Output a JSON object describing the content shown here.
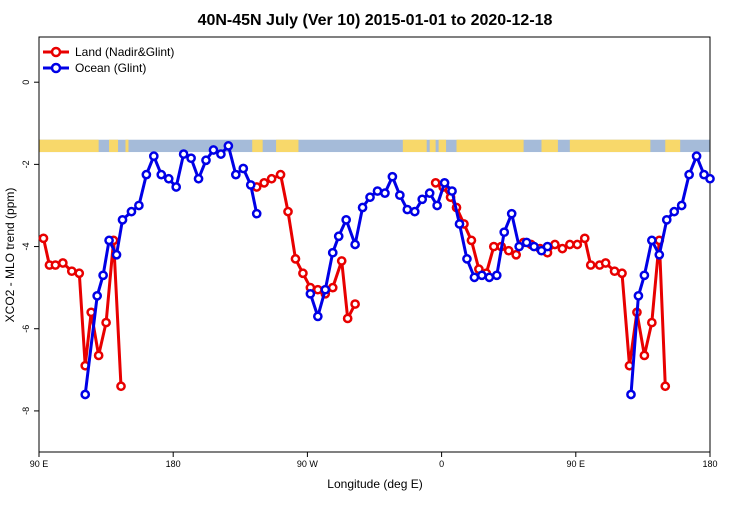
{
  "chart_data": {
    "type": "line",
    "title": "40N-45N July (Ver 10)   2015-01-01 to 2020-12-18",
    "xlabel": "Longitude (deg E)",
    "ylabel": "XCO2 - MLO trend (ppm)",
    "x_ticks": [
      {
        "value": 90,
        "label": "90 E"
      },
      {
        "value": 180,
        "label": "180"
      },
      {
        "value": 270,
        "label": "90 W"
      },
      {
        "value": 360,
        "label": "0"
      },
      {
        "value": 450,
        "label": "90 E"
      },
      {
        "value": 540,
        "label": "180"
      }
    ],
    "y_ticks": [
      {
        "value": 0,
        "label": "0"
      },
      {
        "value": -2,
        "label": "-2"
      },
      {
        "value": -4,
        "label": "-4"
      },
      {
        "value": -6,
        "label": "-6"
      },
      {
        "value": -8,
        "label": "-8"
      }
    ],
    "xlim": [
      90,
      540
    ],
    "ylim": [
      -9,
      1.1
    ],
    "legend_position": "top-left",
    "grid": false,
    "land_mask_band": {
      "y_range": [
        -1.7,
        -1.4
      ],
      "ocean_color": "#a5bbd9",
      "land_color": "#f8d86a",
      "land_segments": [
        [
          90,
          130
        ],
        [
          137,
          143
        ],
        [
          148,
          150
        ],
        [
          233,
          240
        ],
        [
          249,
          264
        ],
        [
          334,
          350
        ],
        [
          352,
          356
        ],
        [
          358,
          363
        ],
        [
          370,
          415
        ],
        [
          427,
          438
        ],
        [
          446,
          500
        ],
        [
          510,
          520
        ]
      ]
    },
    "series": [
      {
        "name": "Land (Nadir&Glint)",
        "color": "#e80000",
        "points": [
          [
            93,
            -3.8
          ],
          [
            97,
            -4.45
          ],
          [
            101,
            -4.45
          ],
          [
            106,
            -4.4
          ],
          [
            112,
            -4.6
          ],
          [
            117,
            -4.65
          ],
          [
            121,
            -6.9
          ],
          [
            125,
            -5.6
          ],
          [
            130,
            -6.65
          ],
          [
            135,
            -5.85
          ],
          [
            140,
            -3.85
          ],
          [
            145,
            -7.4
          ],
          [
            236,
            -2.55
          ],
          [
            241,
            -2.45
          ],
          [
            246,
            -2.35
          ],
          [
            252,
            -2.25
          ],
          [
            257,
            -3.15
          ],
          [
            262,
            -4.3
          ],
          [
            267,
            -4.65
          ],
          [
            272,
            -5.0
          ],
          [
            277,
            -5.05
          ],
          [
            282,
            -5.15
          ],
          [
            287,
            -5.0
          ],
          [
            293,
            -4.35
          ],
          [
            297,
            -5.75
          ],
          [
            302,
            -5.4
          ],
          [
            356,
            -2.45
          ],
          [
            361,
            -2.55
          ],
          [
            366,
            -2.8
          ],
          [
            370,
            -3.05
          ],
          [
            375,
            -3.45
          ],
          [
            380,
            -3.85
          ],
          [
            385,
            -4.55
          ],
          [
            390,
            -4.65
          ],
          [
            395,
            -4.0
          ],
          [
            400,
            -4.0
          ],
          [
            405,
            -4.1
          ],
          [
            410,
            -4.2
          ],
          [
            415,
            -3.9
          ],
          [
            420,
            -3.95
          ],
          [
            426,
            -4.05
          ],
          [
            431,
            -4.15
          ],
          [
            436,
            -3.95
          ],
          [
            441,
            -4.05
          ],
          [
            446,
            -3.95
          ],
          [
            451,
            -3.95
          ],
          [
            456,
            -3.8
          ],
          [
            460,
            -4.45
          ],
          [
            466,
            -4.45
          ],
          [
            470,
            -4.4
          ],
          [
            476,
            -4.6
          ],
          [
            481,
            -4.65
          ],
          [
            486,
            -6.9
          ],
          [
            491,
            -5.6
          ],
          [
            496,
            -6.65
          ],
          [
            501,
            -5.85
          ],
          [
            506,
            -3.85
          ],
          [
            510,
            -7.4
          ]
        ]
      },
      {
        "name": "Ocean (Glint)",
        "color": "#0000e6",
        "points": [
          [
            121,
            -7.6
          ],
          [
            129,
            -5.2
          ],
          [
            133,
            -4.7
          ],
          [
            137,
            -3.85
          ],
          [
            142,
            -4.2
          ],
          [
            146,
            -3.35
          ],
          [
            152,
            -3.15
          ],
          [
            157,
            -3.0
          ],
          [
            162,
            -2.25
          ],
          [
            167,
            -1.8
          ],
          [
            172,
            -2.25
          ],
          [
            177,
            -2.35
          ],
          [
            182,
            -2.55
          ],
          [
            187,
            -1.75
          ],
          [
            192,
            -1.85
          ],
          [
            197,
            -2.35
          ],
          [
            202,
            -1.9
          ],
          [
            207,
            -1.65
          ],
          [
            212,
            -1.75
          ],
          [
            217,
            -1.55
          ],
          [
            222,
            -2.25
          ],
          [
            227,
            -2.1
          ],
          [
            232,
            -2.5
          ],
          [
            236,
            -3.2
          ],
          [
            272,
            -5.15
          ],
          [
            277,
            -5.7
          ],
          [
            282,
            -5.05
          ],
          [
            287,
            -4.15
          ],
          [
            291,
            -3.75
          ],
          [
            296,
            -3.35
          ],
          [
            302,
            -3.95
          ],
          [
            307,
            -3.05
          ],
          [
            312,
            -2.8
          ],
          [
            317,
            -2.65
          ],
          [
            322,
            -2.7
          ],
          [
            327,
            -2.3
          ],
          [
            332,
            -2.75
          ],
          [
            337,
            -3.1
          ],
          [
            342,
            -3.15
          ],
          [
            347,
            -2.85
          ],
          [
            352,
            -2.7
          ],
          [
            357,
            -3.0
          ],
          [
            362,
            -2.45
          ],
          [
            367,
            -2.65
          ],
          [
            372,
            -3.45
          ],
          [
            377,
            -4.3
          ],
          [
            382,
            -4.75
          ],
          [
            387,
            -4.7
          ],
          [
            392,
            -4.75
          ],
          [
            397,
            -4.7
          ],
          [
            402,
            -3.65
          ],
          [
            407,
            -3.2
          ],
          [
            412,
            -4.0
          ],
          [
            417,
            -3.9
          ],
          [
            422,
            -4.0
          ],
          [
            427,
            -4.1
          ],
          [
            431,
            -4.0
          ],
          [
            487,
            -7.6
          ],
          [
            492,
            -5.2
          ],
          [
            496,
            -4.7
          ],
          [
            501,
            -3.85
          ],
          [
            506,
            -4.2
          ],
          [
            511,
            -3.35
          ],
          [
            516,
            -3.15
          ],
          [
            521,
            -3.0
          ],
          [
            526,
            -2.25
          ],
          [
            531,
            -1.8
          ],
          [
            536,
            -2.25
          ],
          [
            540,
            -2.35
          ]
        ]
      }
    ]
  }
}
